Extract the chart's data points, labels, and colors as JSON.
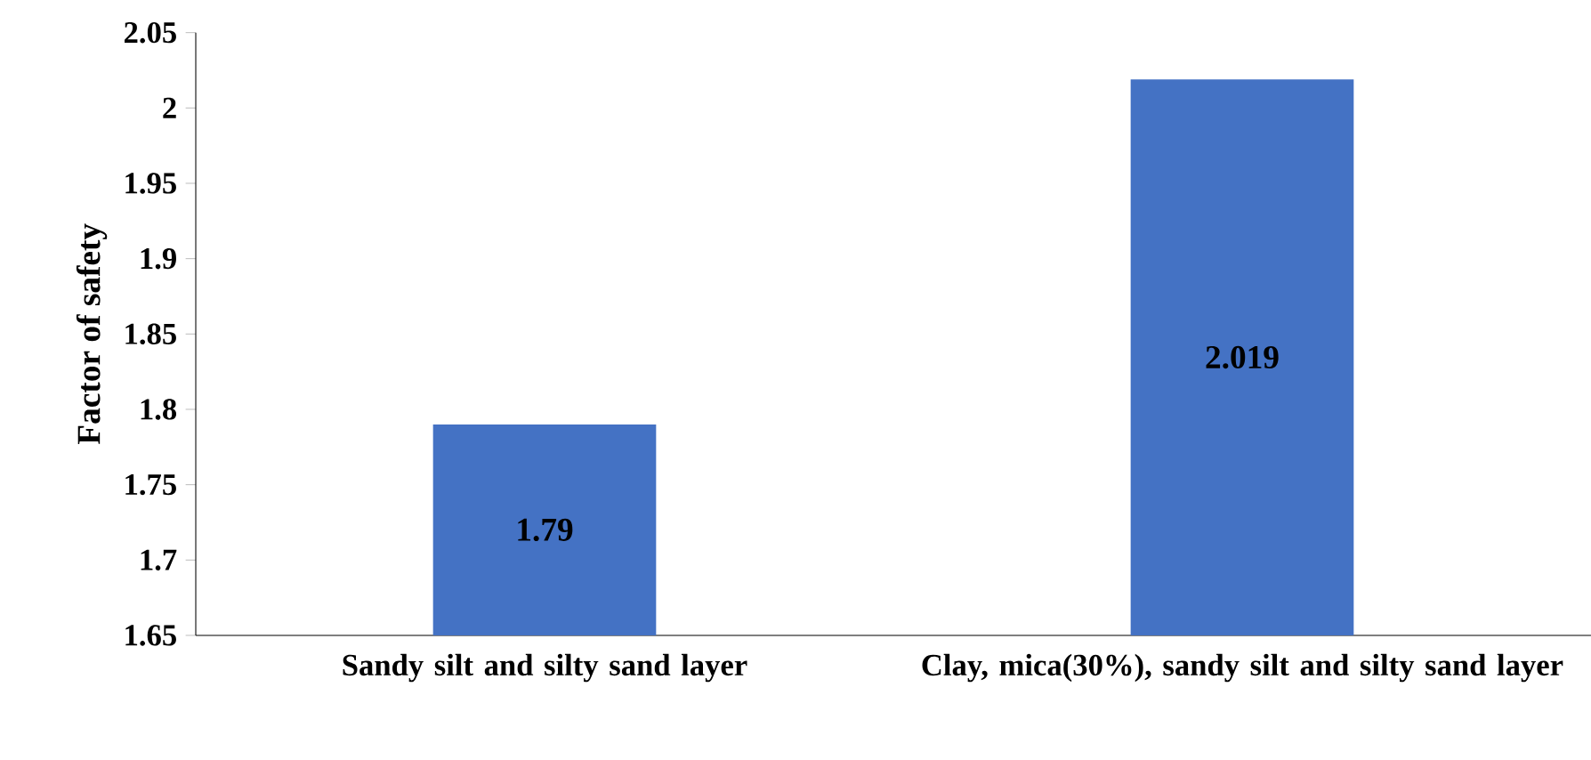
{
  "chart_data": {
    "type": "bar",
    "ylabel": "Factor of safety",
    "categories": [
      "Sandy silt and silty sand layer",
      "Clay, mica(30%), sandy silt and silty sand layer"
    ],
    "values": [
      1.79,
      2.019
    ],
    "color": "#4472c4",
    "data_labels": true,
    "grid": false,
    "ylim": [
      1.65,
      2.05
    ],
    "yticks": [
      1.65,
      1.7,
      1.75,
      1.8,
      1.85,
      1.9,
      1.95,
      2,
      2.05
    ]
  }
}
